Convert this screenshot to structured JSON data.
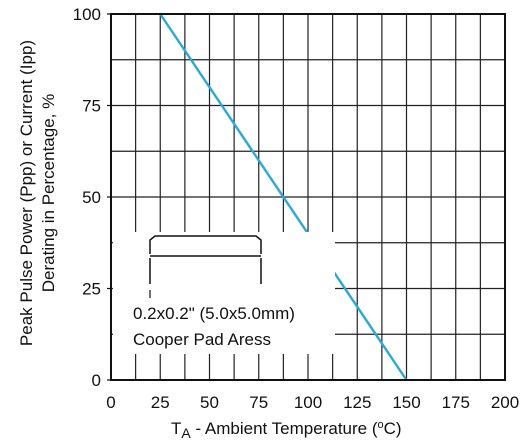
{
  "chart_data": {
    "type": "line",
    "title": "",
    "ylabel_line1": "Peak Pulse Power (Ppp) or Current (Ipp)",
    "ylabel_line2": "Derating in Percentage, %",
    "xlabel_prefix": "T",
    "xlabel_subscript": "A",
    "xlabel_rest": " - Ambient Temperature (",
    "xlabel_degree": "o",
    "xlabel_unit": "C)",
    "xlim": [
      0,
      200
    ],
    "ylim": [
      0,
      100
    ],
    "x_ticks": [
      0,
      25,
      50,
      75,
      100,
      125,
      150,
      175,
      200
    ],
    "y_ticks": [
      0,
      25,
      50,
      75,
      100
    ],
    "grid": true,
    "series": [
      {
        "color": "#29a8dc",
        "x": [
          25,
          150
        ],
        "y": [
          100,
          0
        ]
      }
    ],
    "annotation": {
      "line1": "0.2x0.2\" (5.0x5.0mm)",
      "line2": "Cooper Pad Aress"
    }
  }
}
